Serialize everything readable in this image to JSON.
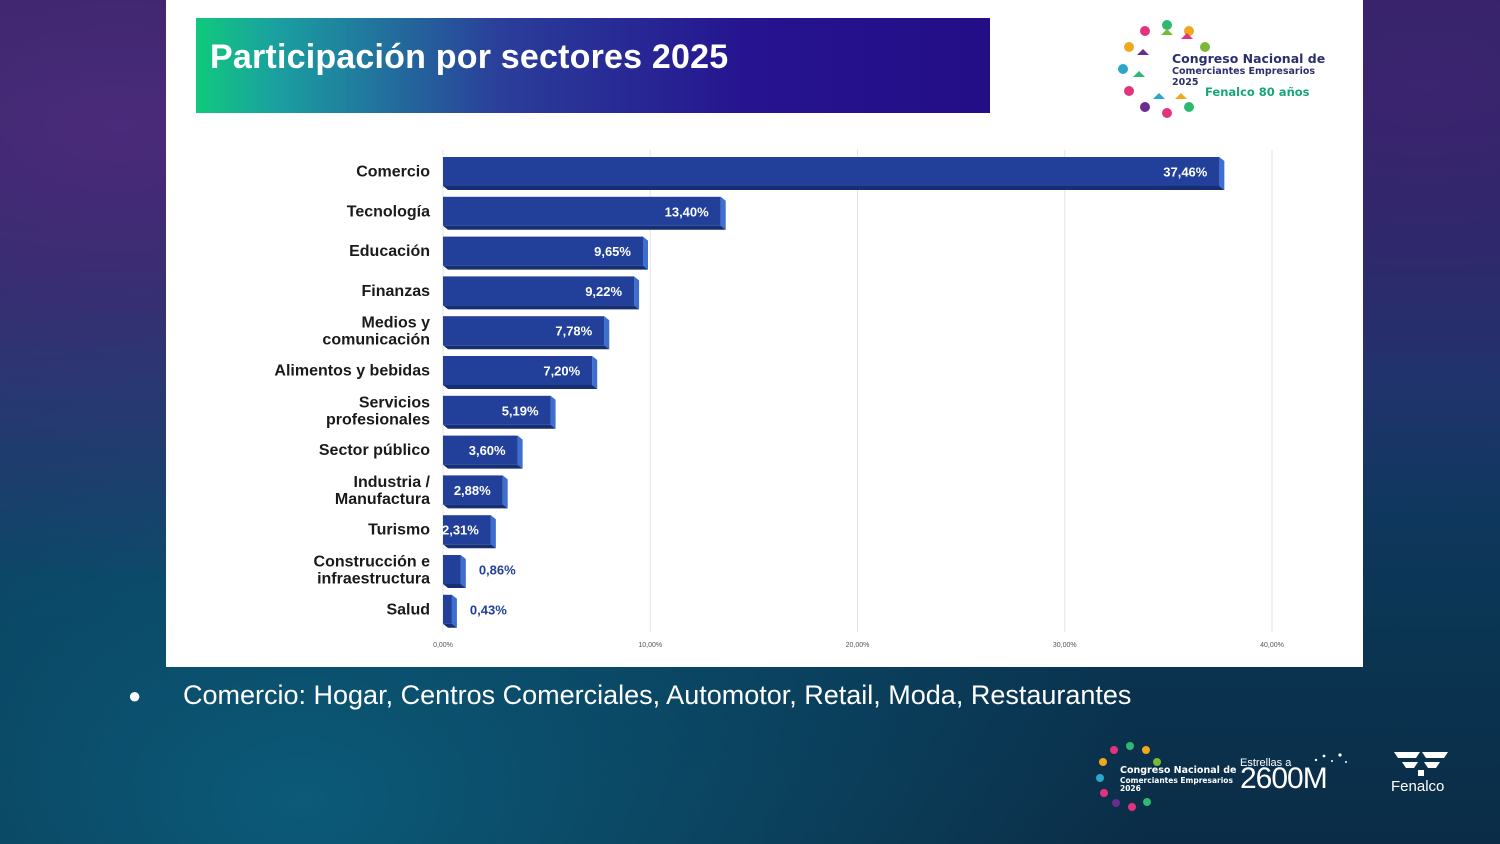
{
  "slide": {
    "title": "Participación por sectores 2025",
    "bullet": "Comercio: Hogar, Centros Comerciales, Automotor, Retail, Moda, Restaurantes"
  },
  "logo_top": {
    "line1": "Congreso Nacional de",
    "line2": "Comerciantes Empresarios",
    "line3": "2025",
    "line4": "Fenalco 80 años"
  },
  "footer": {
    "congreso_line1": "Congreso Nacional de",
    "congreso_line2": "Comerciantes Empresarios",
    "congreso_line3": "2026",
    "estrellas_small": "Estrellas a",
    "estrellas_big": "2600M",
    "fenalco": "Fenalco"
  },
  "colors": {
    "bar": "#22409a",
    "bar_side": "#3d6fd0",
    "bar_bottom": "#162f72",
    "label": "#1a1a1a",
    "value_inside": "#ffffff",
    "value_outside": "#22409a"
  },
  "chart_data": {
    "type": "bar",
    "orientation": "horizontal",
    "categories": [
      "Comercio",
      "Tecnología",
      "Educación",
      "Finanzas",
      "Medios y\ncomunicación",
      "Alimentos y bebidas",
      "Servicios\nprofesionales",
      "Sector público",
      "Industria /\nManufactura",
      "Turismo",
      "Construcción e\ninfraestructura",
      "Salud"
    ],
    "values": [
      37.46,
      13.4,
      9.65,
      9.22,
      7.78,
      7.2,
      5.19,
      3.6,
      2.88,
      2.31,
      0.86,
      0.43
    ],
    "value_labels": [
      "37,46%",
      "13,40%",
      "9,65%",
      "9,22%",
      "7,78%",
      "7,20%",
      "5,19%",
      "3,60%",
      "2,88%",
      "2,31%",
      "0,86%",
      "0,43%"
    ],
    "xlim": [
      0,
      40
    ],
    "xticks": [
      0,
      10,
      20,
      30,
      40
    ],
    "xtick_labels": [
      "0,00%",
      "10,00%",
      "20,00%",
      "30,00%",
      "40,00%"
    ],
    "grid": true,
    "legend": "none"
  }
}
